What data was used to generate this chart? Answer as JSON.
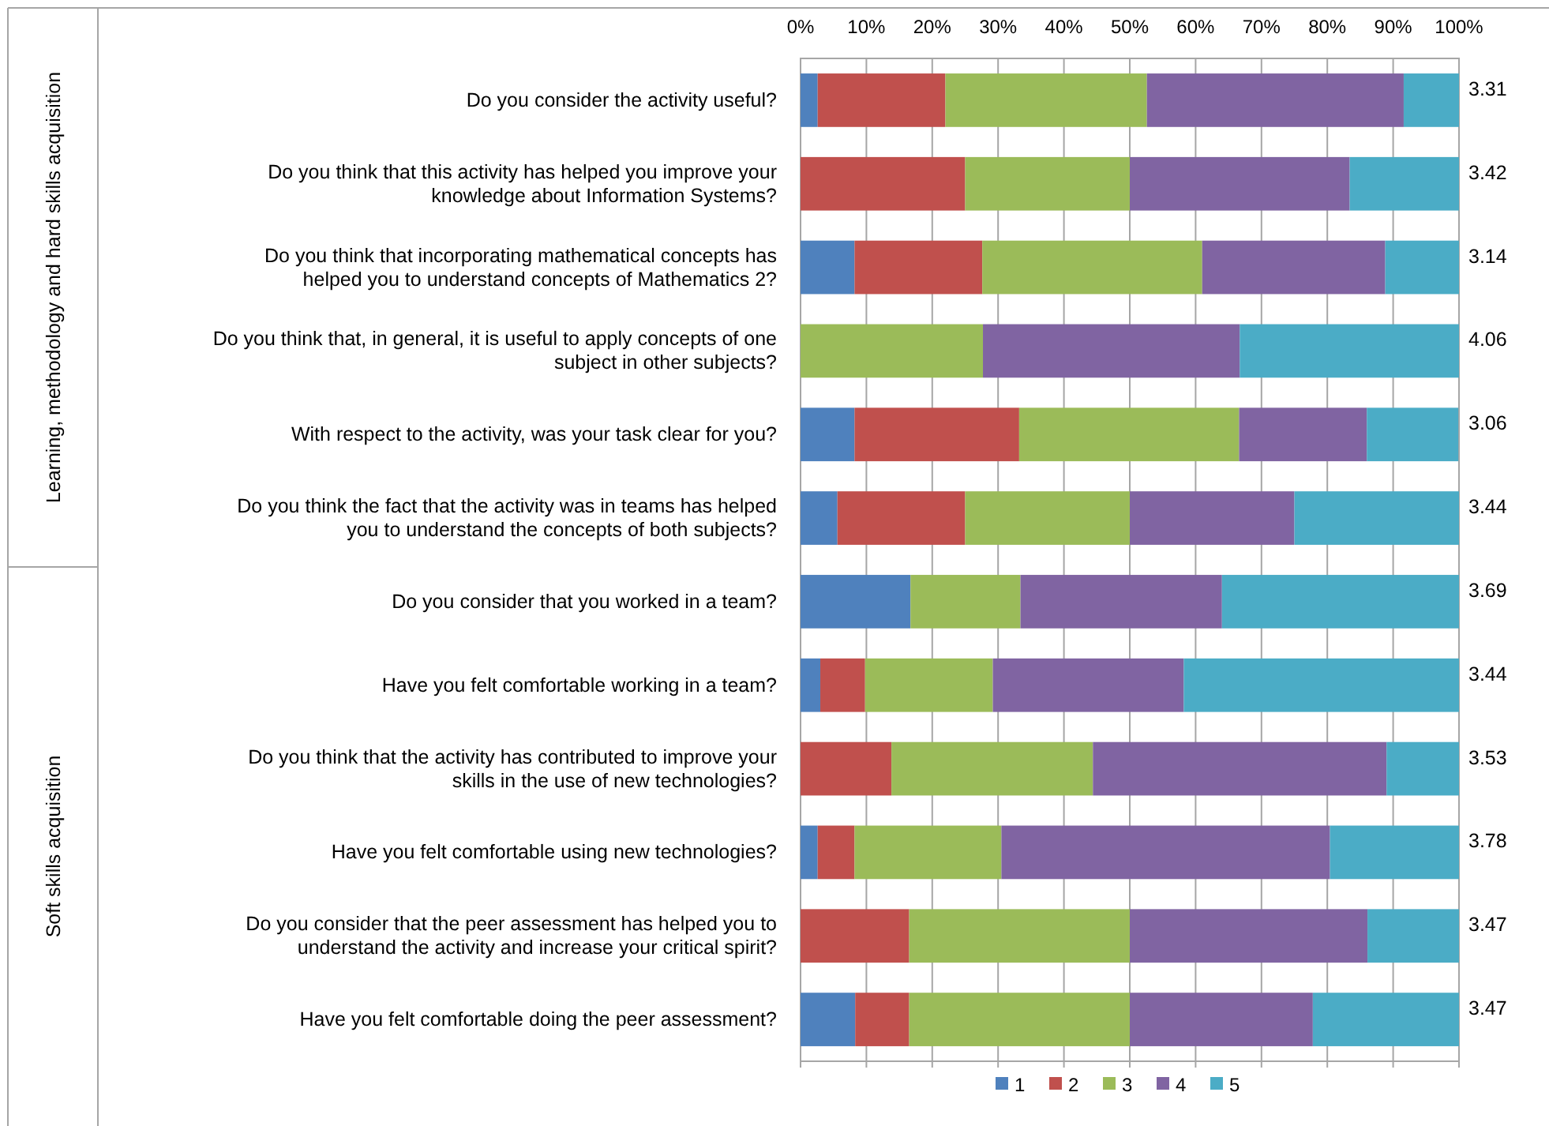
{
  "chart_data": {
    "type": "bar",
    "orientation": "horizontal",
    "stacked": true,
    "categories": [
      "Do you consider the activity useful?",
      "Do you think that this activity has helped you improve your knowledge about Information Systems?",
      "Do you think that incorporating mathematical concepts has helped you to understand concepts of Mathematics 2?",
      "Do you think that, in general, it is useful to apply concepts of one subject in other subjects?",
      "With respect to the activity, was your task clear for you?",
      "Do you think the fact that the activity was in teams has helped you to understand the concepts of both subjects?",
      "Do you consider that you worked in a team?",
      "Have you felt comfortable working in a team?",
      "Do you think that the activity has contributed to improve your skills in the use of new technologies?",
      "Have you felt comfortable using new technologies?",
      "Do you consider that the peer assessment has helped you to understand the activity and increase your critical spirit?",
      "Have you felt comfortable doing the peer assessment?"
    ],
    "series": [
      {
        "name": "1",
        "color": "#4f81bd",
        "values": [
          2.6,
          0,
          8.2,
          0,
          8.2,
          5.6,
          16.7,
          3,
          0,
          2.6,
          0,
          8.3
        ]
      },
      {
        "name": "2",
        "color": "#c0504d",
        "values": [
          19.4,
          25,
          19.4,
          0,
          25,
          19.4,
          0,
          6.8,
          13.8,
          5.6,
          16.5,
          8.2
        ]
      },
      {
        "name": "3",
        "color": "#9bbb59",
        "values": [
          30.6,
          25,
          33.4,
          27.7,
          33.4,
          25,
          16.7,
          19.4,
          30.6,
          22.3,
          33.5,
          33.5
        ]
      },
      {
        "name": "4",
        "color": "#8064a2",
        "values": [
          39,
          33.4,
          27.8,
          39,
          19.4,
          25,
          30.6,
          29,
          44.6,
          49.9,
          36.1,
          27.8
        ]
      },
      {
        "name": "5",
        "color": "#4bacc6",
        "values": [
          8.4,
          16.6,
          11.2,
          33.3,
          13.9,
          25,
          36,
          41.8,
          11,
          19.6,
          13.9,
          22.2
        ]
      }
    ],
    "xlim": [
      0,
      100
    ],
    "xticks": [
      {
        "value": 0,
        "label": "0%"
      },
      {
        "value": 10,
        "label": "10%"
      },
      {
        "value": 20,
        "label": "20%"
      },
      {
        "value": 30,
        "label": "30%"
      },
      {
        "value": 40,
        "label": "40%"
      },
      {
        "value": 50,
        "label": "50%"
      },
      {
        "value": 60,
        "label": "60%"
      },
      {
        "value": 70,
        "label": "70%"
      },
      {
        "value": 80,
        "label": "80%"
      },
      {
        "value": 90,
        "label": "90%"
      },
      {
        "value": 100,
        "label": "100%"
      }
    ],
    "grid": "x",
    "legend": "bottom",
    "annotations": [
      "Learning, methodology and hard skills acquisition",
      "Soft skills acquisition",
      "3.31",
      "3.42",
      "3.14",
      "4.06",
      "3.06",
      "3.44",
      "3.69",
      "3.44",
      "3.53",
      "3.78",
      "3.47",
      "3.47"
    ]
  }
}
